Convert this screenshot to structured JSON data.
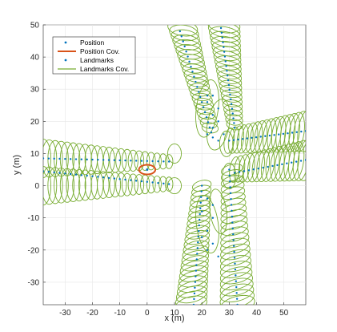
{
  "chart_data": {
    "type": "scatter",
    "xlabel": "x (m)",
    "ylabel": "y (m)",
    "xlim": [
      -38,
      58
    ],
    "ylim": [
      -37,
      50
    ],
    "xticks": [
      -30,
      -20,
      -10,
      0,
      10,
      20,
      30,
      40,
      50
    ],
    "yticks": [
      -30,
      -20,
      -10,
      0,
      10,
      20,
      30,
      40,
      50
    ],
    "grid": true,
    "legend_position": "top-left",
    "legend": [
      "Position",
      "Position Cov.",
      "Landmarks",
      "Landmarks Cov."
    ],
    "series": [
      {
        "name": "Position",
        "kind": "points",
        "color": "#0072BD",
        "points": [
          [
            0,
            5
          ]
        ]
      },
      {
        "name": "Position Cov.",
        "kind": "ellipse",
        "color": "#D95319",
        "ellipses": [
          [
            0,
            5,
            3,
            1.5,
            0
          ]
        ]
      },
      {
        "name": "Landmarks",
        "kind": "points",
        "color": "#0072BD",
        "groups": [
          {
            "label": "left-upper",
            "start": [
              -38,
              8.5
            ],
            "end": [
              8,
              7.5
            ],
            "count": 24
          },
          {
            "label": "left-lower",
            "start": [
              -38,
              4.5
            ],
            "end": [
              8,
              0.5
            ],
            "count": 24
          },
          {
            "label": "top-left-column",
            "start": [
              12,
              48
            ],
            "end": [
              24,
              15
            ],
            "count": 22
          },
          {
            "label": "top-right-column",
            "start": [
              27,
              49
            ],
            "end": [
              32,
              18
            ],
            "count": 22
          },
          {
            "label": "right-upper",
            "start": [
              30,
              14
            ],
            "end": [
              58,
              17
            ],
            "count": 18
          },
          {
            "label": "right-lower",
            "start": [
              32,
              4
            ],
            "end": [
              58,
              8
            ],
            "count": 16
          },
          {
            "label": "bottom-left-column",
            "start": [
              20,
              0
            ],
            "end": [
              17,
              -37
            ],
            "count": 22
          },
          {
            "label": "bottom-right-column",
            "start": [
              30,
              5
            ],
            "end": [
              33,
              -37
            ],
            "count": 24
          },
          {
            "label": "cluster-upper",
            "points": [
              [
                22,
                28
              ],
              [
                24,
                28
              ],
              [
                22,
                26
              ],
              [
                26,
                24
              ],
              [
                24,
                22
              ],
              [
                26,
                20
              ],
              [
                24,
                18
              ],
              [
                22,
                16
              ],
              [
                28,
                16
              ],
              [
                26,
                14
              ]
            ]
          },
          {
            "label": "cluster-lower",
            "points": [
              [
                22,
                -4
              ],
              [
                24,
                -6
              ],
              [
                20,
                -8
              ],
              [
                24,
                -10
              ],
              [
                22,
                -14
              ],
              [
                20,
                -16
              ],
              [
                24,
                -18
              ],
              [
                22,
                -20
              ],
              [
                26,
                -22
              ]
            ]
          }
        ]
      },
      {
        "name": "Landmarks Cov.",
        "kind": "ellipse",
        "color": "#77AC30",
        "bands": [
          {
            "label": "left-upper",
            "start": [
              -38,
              8.5
            ],
            "end": [
              8,
              7.5
            ],
            "count": 22,
            "rx": [
              2.8,
              1.4
            ],
            "ry": [
              6,
              2.2
            ],
            "angle": 0
          },
          {
            "label": "left-lower",
            "start": [
              -38,
              0
            ],
            "end": [
              8,
              0.5
            ],
            "count": 22,
            "rx": [
              2.8,
              1.4
            ],
            "ry": [
              6,
              2.2
            ],
            "angle": 0
          },
          {
            "label": "top-left-column",
            "start": [
              13,
              49
            ],
            "end": [
              23,
              18
            ],
            "count": 22,
            "rx": [
              5.5,
              3
            ],
            "ry": [
              2.4,
              1.6
            ],
            "angle": -10
          },
          {
            "label": "top-right-column",
            "start": [
              28,
              50
            ],
            "end": [
              32,
              19
            ],
            "count": 22,
            "rx": [
              6,
              3
            ],
            "ry": [
              2.4,
              1.6
            ],
            "angle": -10
          },
          {
            "label": "right-upper",
            "start": [
              30,
              14
            ],
            "end": [
              58,
              17
            ],
            "count": 18,
            "rx": [
              1.8,
              2.8
            ],
            "ry": [
              4,
              6.5
            ],
            "angle": -8
          },
          {
            "label": "right-lower",
            "start": [
              32,
              5
            ],
            "end": [
              58,
              8
            ],
            "count": 16,
            "rx": [
              1.8,
              2.8
            ],
            "ry": [
              4,
              6.5
            ],
            "angle": -8
          },
          {
            "label": "bottom-left-column",
            "start": [
              20,
              0
            ],
            "end": [
              16,
              -37
            ],
            "count": 24,
            "rx": [
              3.5,
              6
            ],
            "ry": [
              1.6,
              2.5
            ],
            "angle": 15
          },
          {
            "label": "bottom-right-column",
            "start": [
              31,
              5
            ],
            "end": [
              33,
              -37
            ],
            "count": 24,
            "rx": [
              4,
              6.5
            ],
            "ry": [
              1.6,
              2.6
            ],
            "angle": 15
          }
        ],
        "ellipses": [
          [
            22,
            24,
            4,
            9,
            -8
          ],
          [
            26,
            19,
            4,
            8,
            -10
          ],
          [
            22,
            -12,
            4,
            9,
            8
          ],
          [
            26,
            -8,
            3,
            7,
            8
          ],
          [
            10,
            10,
            2.5,
            3,
            0
          ],
          [
            29,
            13,
            2.5,
            4,
            0
          ],
          [
            10,
            0,
            2.5,
            2.5,
            0
          ],
          [
            30,
            3,
            2.5,
            4,
            0
          ]
        ]
      }
    ]
  }
}
